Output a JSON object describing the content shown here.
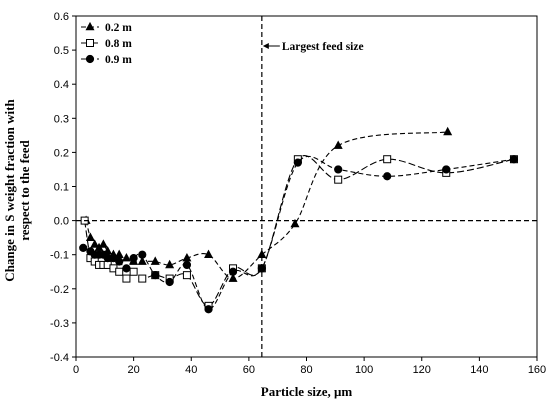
{
  "chart_data": {
    "type": "line",
    "xlabel": "Particle size, μm",
    "ylabel": "Change in S weight fraction with respect to the feed",
    "xlim": [
      0,
      160
    ],
    "ylim": [
      -0.4,
      0.6
    ],
    "xticks": [
      "0",
      "20",
      "40",
      "60",
      "80",
      "100",
      "120",
      "140",
      "160"
    ],
    "yticks": [
      "-0.4",
      "-0.3",
      "-0.2",
      "-0.1",
      "0.0",
      "0.1",
      "0.2",
      "0.3",
      "0.4",
      "0.5",
      "0.6"
    ],
    "grid": false,
    "legend_position": "top-left",
    "series": [
      {
        "name": "0.2 m",
        "marker": "triangle",
        "x": [
          3.5,
          5,
          6.5,
          8,
          9.5,
          11,
          13,
          15,
          17.5,
          20,
          23,
          27.5,
          32.5,
          38.5,
          46,
          54.5,
          64.5,
          76,
          91,
          129
        ],
        "y": [
          0.0,
          -0.05,
          -0.07,
          -0.08,
          -0.07,
          -0.09,
          -0.1,
          -0.1,
          -0.11,
          -0.12,
          -0.12,
          -0.12,
          -0.13,
          -0.11,
          -0.1,
          -0.17,
          -0.1,
          -0.01,
          0.22,
          0.26
        ]
      },
      {
        "name": "0.8 m",
        "marker": "open-square",
        "x": [
          3,
          5,
          6.5,
          8,
          9.5,
          11,
          13,
          15,
          17.5,
          20,
          23,
          27.5,
          32.5,
          38.5,
          46,
          54.5,
          64.5,
          77,
          91,
          108,
          128.5,
          152
        ],
        "y": [
          0.0,
          -0.11,
          -0.12,
          -0.13,
          -0.13,
          -0.13,
          -0.14,
          -0.15,
          -0.17,
          -0.15,
          -0.17,
          -0.16,
          -0.17,
          -0.16,
          -0.25,
          -0.14,
          -0.14,
          0.18,
          0.12,
          0.18,
          0.14,
          0.18
        ]
      },
      {
        "name": "0.9 m",
        "marker": "filled-circle",
        "x": [
          2.5,
          5,
          6.5,
          8,
          9.5,
          11,
          13,
          15,
          17.5,
          20,
          23,
          27.5,
          32.5,
          38.5,
          46,
          54.5,
          64.5,
          77,
          91,
          108,
          128.5,
          152
        ],
        "y": [
          -0.08,
          -0.09,
          -0.1,
          -0.1,
          -0.1,
          -0.11,
          -0.11,
          -0.12,
          -0.14,
          -0.11,
          -0.1,
          -0.16,
          -0.18,
          -0.13,
          -0.26,
          -0.15,
          -0.14,
          0.17,
          0.15,
          0.13,
          0.15,
          0.18
        ]
      }
    ],
    "annotations": {
      "vertical_line": {
        "x": 64.5,
        "label": "Largest feed size"
      },
      "horizontal_line": {
        "y": 0.0
      }
    }
  }
}
